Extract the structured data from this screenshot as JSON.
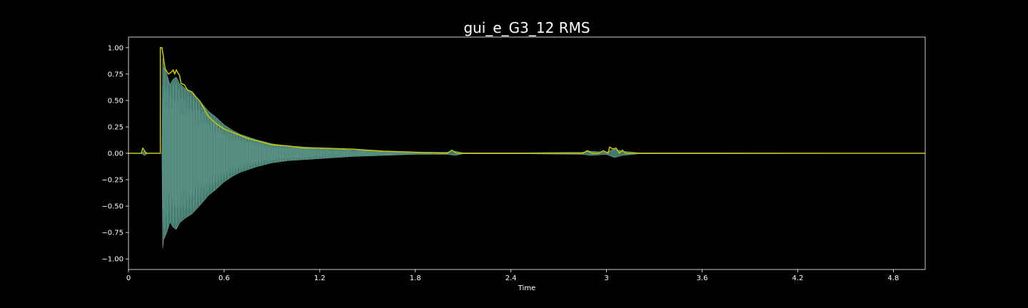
{
  "chart_data": {
    "type": "line",
    "title": "gui_e_G3_12 RMS",
    "xlabel": "Time",
    "ylabel": "",
    "xlim": [
      0,
      5.0
    ],
    "ylim": [
      -1.1,
      1.1
    ],
    "x_ticks": [
      0,
      0.6,
      1.2,
      1.8,
      2.4,
      3.0,
      3.6,
      4.2,
      4.8
    ],
    "x_tick_labels": [
      "0",
      "0.6",
      "1.2",
      "1.8",
      "2.4",
      "3",
      "3.6",
      "4.2",
      "4.8"
    ],
    "y_ticks": [
      1.0,
      0.75,
      0.5,
      0.25,
      0.0,
      -0.25,
      -0.5,
      -0.75,
      -1.0
    ],
    "y_tick_labels": [
      "1.00",
      "0.75",
      "0.50",
      "0.25",
      "0.00",
      "−0.25",
      "−0.50",
      "−0.75",
      "−1.00"
    ],
    "grid": false,
    "background": "#000000",
    "series": [
      {
        "kind": "waveform-envelope",
        "color": "#4f8f80",
        "points": [
          [
            0.0,
            0.0
          ],
          [
            0.08,
            0.0
          ],
          [
            0.1,
            0.02
          ],
          [
            0.12,
            0.0
          ],
          [
            0.2,
            0.0
          ],
          [
            0.21,
            0.0
          ],
          [
            0.215,
            0.9
          ],
          [
            0.22,
            0.82
          ],
          [
            0.24,
            0.75
          ],
          [
            0.26,
            0.65
          ],
          [
            0.28,
            0.7
          ],
          [
            0.3,
            0.72
          ],
          [
            0.32,
            0.66
          ],
          [
            0.35,
            0.62
          ],
          [
            0.4,
            0.57
          ],
          [
            0.45,
            0.49
          ],
          [
            0.5,
            0.4
          ],
          [
            0.55,
            0.34
          ],
          [
            0.6,
            0.27
          ],
          [
            0.65,
            0.22
          ],
          [
            0.7,
            0.18
          ],
          [
            0.8,
            0.13
          ],
          [
            0.9,
            0.09
          ],
          [
            1.0,
            0.07
          ],
          [
            1.2,
            0.05
          ],
          [
            1.4,
            0.03
          ],
          [
            1.6,
            0.02
          ],
          [
            1.8,
            0.01
          ],
          [
            2.0,
            0.01
          ],
          [
            2.05,
            0.02
          ],
          [
            2.1,
            0.005
          ],
          [
            2.5,
            0.005
          ],
          [
            2.85,
            0.01
          ],
          [
            2.9,
            0.02
          ],
          [
            3.0,
            0.01
          ],
          [
            3.05,
            0.04
          ],
          [
            3.1,
            0.02
          ],
          [
            3.2,
            0.005
          ],
          [
            5.0,
            0.0
          ]
        ]
      },
      {
        "name": "RMS",
        "kind": "rms",
        "color": "#c8c800",
        "points": [
          [
            0.0,
            0.0
          ],
          [
            0.08,
            0.0
          ],
          [
            0.09,
            0.05
          ],
          [
            0.11,
            0.0
          ],
          [
            0.2,
            0.0
          ],
          [
            0.2,
            0.0
          ],
          [
            0.2,
            1.0
          ],
          [
            0.21,
            1.0
          ],
          [
            0.23,
            0.8
          ],
          [
            0.25,
            0.75
          ],
          [
            0.27,
            0.77
          ],
          [
            0.28,
            0.79
          ],
          [
            0.29,
            0.75
          ],
          [
            0.3,
            0.79
          ],
          [
            0.31,
            0.76
          ],
          [
            0.32,
            0.74
          ],
          [
            0.33,
            0.66
          ],
          [
            0.35,
            0.65
          ],
          [
            0.37,
            0.6
          ],
          [
            0.4,
            0.58
          ],
          [
            0.42,
            0.54
          ],
          [
            0.45,
            0.49
          ],
          [
            0.5,
            0.35
          ],
          [
            0.55,
            0.28
          ],
          [
            0.6,
            0.23
          ],
          [
            0.65,
            0.2
          ],
          [
            0.7,
            0.17
          ],
          [
            0.75,
            0.14
          ],
          [
            0.8,
            0.12
          ],
          [
            0.9,
            0.08
          ],
          [
            1.0,
            0.07
          ],
          [
            1.1,
            0.05
          ],
          [
            1.2,
            0.05
          ],
          [
            1.4,
            0.04
          ],
          [
            1.6,
            0.02
          ],
          [
            1.7,
            0.015
          ],
          [
            1.8,
            0.01
          ],
          [
            2.0,
            0.0
          ],
          [
            2.03,
            0.03
          ],
          [
            2.06,
            0.0
          ],
          [
            2.3,
            0.0
          ],
          [
            2.7,
            0.0
          ],
          [
            2.85,
            0.0
          ],
          [
            2.88,
            0.025
          ],
          [
            2.91,
            0.0
          ],
          [
            2.95,
            0.0
          ],
          [
            2.98,
            0.025
          ],
          [
            3.01,
            0.0
          ],
          [
            3.02,
            0.06
          ],
          [
            3.04,
            0.04
          ],
          [
            3.06,
            0.05
          ],
          [
            3.08,
            0.0
          ],
          [
            3.1,
            0.03
          ],
          [
            3.12,
            0.0
          ],
          [
            3.2,
            0.0
          ],
          [
            3.6,
            0.0
          ],
          [
            4.0,
            0.0
          ],
          [
            4.5,
            0.0
          ],
          [
            5.0,
            0.0
          ]
        ]
      }
    ]
  }
}
